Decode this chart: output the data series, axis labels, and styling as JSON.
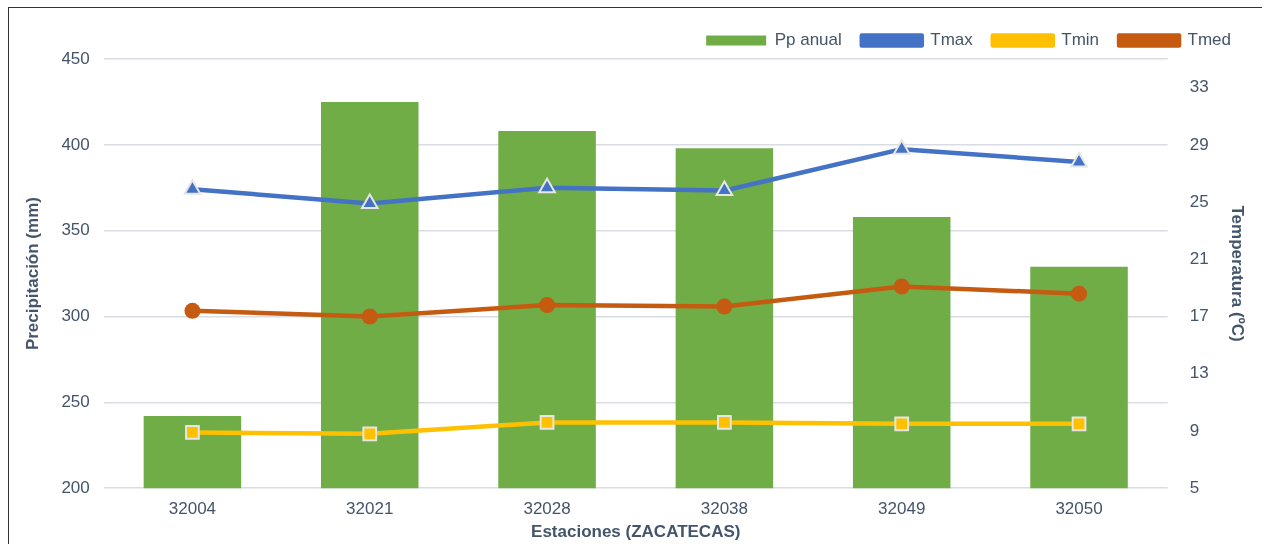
{
  "chart_data": {
    "type": "bar",
    "xlabel": "Estaciones (ZACATECAS)",
    "ylabel": "Precipitación (mm)",
    "y2label": "Temperatura (ºC)",
    "categories": [
      "32004",
      "32021",
      "32028",
      "32038",
      "32049",
      "32050"
    ],
    "series": [
      {
        "name": "Pp anual",
        "color": "#70ad47",
        "values": [
          242,
          425,
          408,
          398,
          358,
          329
        ]
      },
      {
        "name": "Tmax",
        "type": "line",
        "axis": "y2",
        "marker": "triangle",
        "color": "#4472c4",
        "values": [
          25.9,
          24.9,
          26.0,
          25.8,
          28.7,
          27.8
        ]
      },
      {
        "name": "Tmin",
        "type": "line",
        "axis": "y2",
        "marker": "square",
        "color": "#ffc000",
        "values": [
          8.9,
          8.8,
          9.6,
          9.6,
          9.5,
          9.5
        ]
      },
      {
        "name": "Tmed",
        "type": "line",
        "axis": "y2",
        "marker": "circle",
        "color": "#c55a11",
        "values": [
          17.4,
          17.0,
          17.8,
          17.7,
          19.1,
          18.6
        ]
      }
    ],
    "ylim": [
      200,
      450
    ],
    "yticks": [
      200,
      250,
      300,
      350,
      400,
      450
    ],
    "y2lim": [
      5,
      35
    ],
    "y2ticks": [
      5,
      9,
      13,
      17,
      21,
      25,
      29,
      33
    ],
    "grid": "y",
    "legend": "top right",
    "line_style": "solid"
  }
}
